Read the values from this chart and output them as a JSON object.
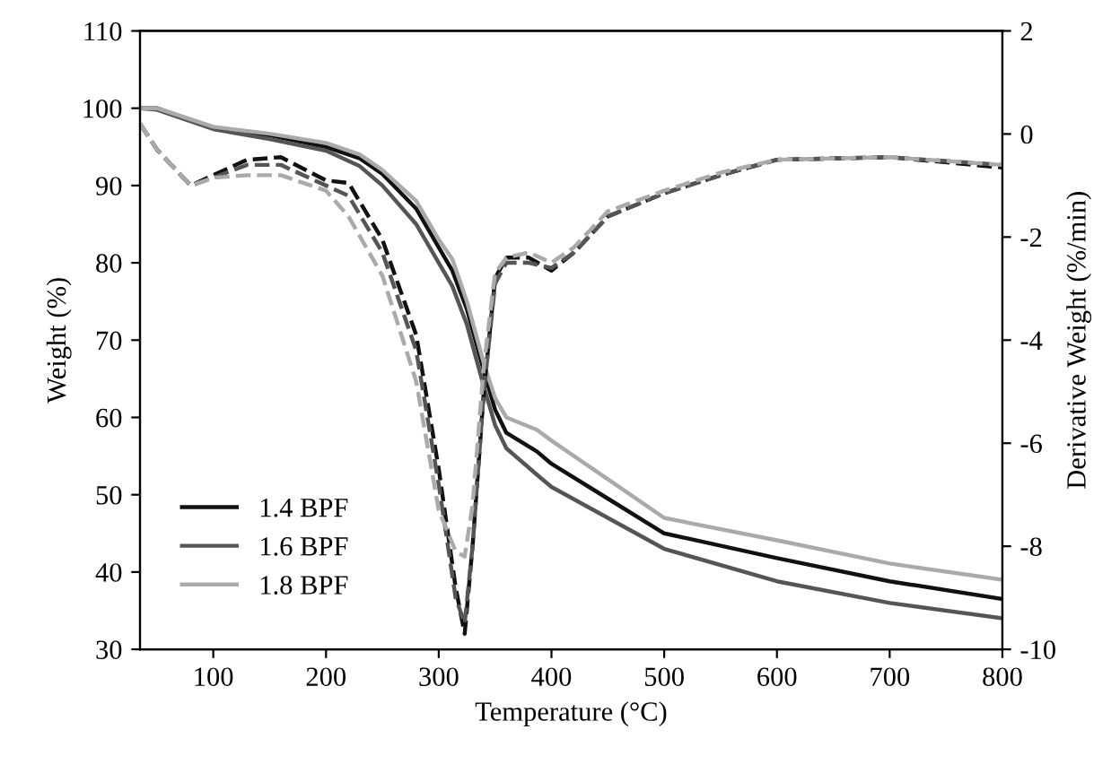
{
  "chart_data": {
    "type": "line",
    "xlabel": "Temperature (°C)",
    "ylabel": "Weight (%)",
    "y2label": "Derivative Weight (%/min)",
    "xlim": [
      35,
      800
    ],
    "xticks": [
      100,
      200,
      300,
      400,
      500,
      600,
      700,
      800
    ],
    "ylim": [
      30,
      110
    ],
    "yticks": [
      30,
      40,
      50,
      60,
      70,
      80,
      90,
      100,
      110
    ],
    "y2lim": [
      -10,
      2
    ],
    "y2ticks": [
      -10,
      -8,
      -6,
      -4,
      -2,
      0,
      2
    ],
    "legend": "bottom left",
    "grid": false,
    "marker": "none",
    "series": [
      {
        "name": "1.4 BPF",
        "color": "#111111",
        "line_style": "solid",
        "x": [
          35,
          50,
          100,
          150,
          200,
          230,
          250,
          280,
          300,
          312,
          325,
          340,
          350,
          360,
          387,
          400,
          450,
          500,
          600,
          700,
          800
        ],
        "values": [
          100,
          100,
          97.5,
          96.5,
          95,
          93.5,
          91.5,
          87,
          82,
          79,
          74,
          66,
          61,
          58,
          55.6,
          54,
          49.5,
          45,
          41.8,
          38.8,
          36.5
        ]
      },
      {
        "name": "1.6 BPF",
        "color": "#555555",
        "line_style": "solid",
        "x": [
          35,
          50,
          100,
          150,
          200,
          230,
          250,
          280,
          300,
          312,
          325,
          340,
          350,
          360,
          387,
          400,
          450,
          500,
          600,
          700,
          800
        ],
        "values": [
          100,
          99.8,
          97.3,
          96,
          94.5,
          92.5,
          90,
          85,
          80,
          77,
          72,
          64,
          59,
          56,
          52.6,
          51,
          47,
          43,
          38.8,
          36,
          34
        ]
      },
      {
        "name": "1.8 BPF",
        "color": "#aaaaaa",
        "line_style": "solid",
        "x": [
          35,
          50,
          100,
          150,
          200,
          230,
          250,
          280,
          300,
          312,
          325,
          340,
          350,
          360,
          387,
          400,
          450,
          500,
          600,
          700,
          800
        ],
        "values": [
          100,
          100,
          97.6,
          96.7,
          95.5,
          94,
          92,
          88,
          83,
          80.5,
          75,
          67,
          62.5,
          60,
          58.4,
          57,
          52,
          47,
          44.1,
          41.1,
          39
        ]
      },
      {
        "color": "#111111",
        "line_style": "dashed",
        "axis": "y2",
        "x": [
          35,
          50,
          80,
          100,
          130,
          160,
          200,
          220,
          250,
          280,
          300,
          315,
          323,
          330,
          340,
          350,
          360,
          380,
          400,
          420,
          450,
          500,
          550,
          600,
          700,
          800
        ],
        "values": [
          0.2,
          -0.3,
          -1.0,
          -0.8,
          -0.5,
          -0.45,
          -0.9,
          -0.95,
          -2.05,
          -3.9,
          -6.5,
          -8.8,
          -9.7,
          -8.0,
          -5,
          -2.8,
          -2.4,
          -2.4,
          -2.65,
          -2.3,
          -1.6,
          -1.15,
          -0.8,
          -0.5,
          -0.45,
          -0.65
        ]
      },
      {
        "color": "#555555",
        "line_style": "dashed",
        "axis": "y2",
        "x": [
          35,
          50,
          80,
          100,
          130,
          160,
          200,
          220,
          250,
          280,
          300,
          315,
          323,
          330,
          340,
          350,
          360,
          380,
          400,
          420,
          450,
          500,
          550,
          600,
          700,
          800
        ],
        "values": [
          0.2,
          -0.3,
          -1.0,
          -0.85,
          -0.6,
          -0.6,
          -1.0,
          -1.2,
          -2.3,
          -4.2,
          -6.8,
          -9.0,
          -9.5,
          -8.0,
          -5,
          -2.9,
          -2.5,
          -2.5,
          -2.6,
          -2.3,
          -1.6,
          -1.15,
          -0.8,
          -0.5,
          -0.45,
          -0.6
        ]
      },
      {
        "color": "#aaaaaa",
        "line_style": "dashed",
        "axis": "y2",
        "x": [
          35,
          50,
          80,
          100,
          130,
          160,
          200,
          220,
          250,
          280,
          300,
          315,
          323,
          330,
          340,
          350,
          360,
          380,
          400,
          420,
          450,
          500,
          550,
          600,
          700,
          800
        ],
        "values": [
          0.2,
          -0.3,
          -1.0,
          -0.85,
          -0.8,
          -0.8,
          -1.1,
          -1.6,
          -2.75,
          -4.8,
          -7.3,
          -8.1,
          -8.2,
          -7.2,
          -4.5,
          -2.7,
          -2.4,
          -2.3,
          -2.5,
          -2.2,
          -1.5,
          -1.1,
          -0.75,
          -0.5,
          -0.45,
          -0.6
        ]
      }
    ]
  }
}
